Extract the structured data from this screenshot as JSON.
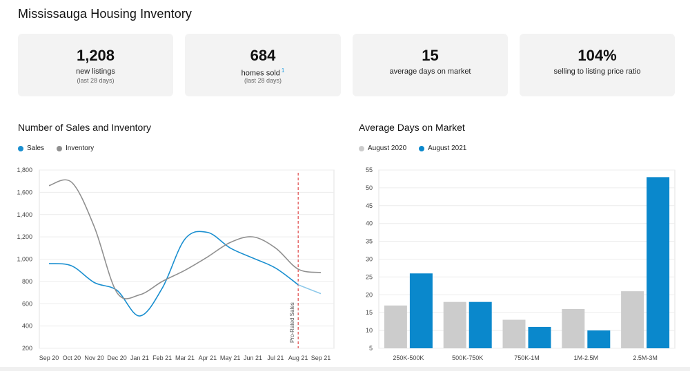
{
  "header": {
    "title": "Mississauga Housing Inventory"
  },
  "stats": [
    {
      "value": "1,208",
      "label": "new listings",
      "sub": "(last 28 days)",
      "footnote": ""
    },
    {
      "value": "684",
      "label": "homes sold",
      "sub": "(last 28 days)",
      "footnote": "1"
    },
    {
      "value": "15",
      "label": "average days on market",
      "sub": "",
      "footnote": ""
    },
    {
      "value": "104%",
      "label": "selling to listing price ratio",
      "sub": "",
      "footnote": ""
    }
  ],
  "colors": {
    "sales": "#1a8fd0",
    "inventory": "#909090",
    "aug2020": "#cccccc",
    "aug2021": "#0a88cc",
    "marker": "#e04848"
  },
  "chart_data": [
    {
      "type": "line",
      "title": "Number of Sales and Inventory",
      "categories": [
        "Sep 20",
        "Oct 20",
        "Nov 20",
        "Dec 20",
        "Jan 21",
        "Feb 21",
        "Mar 21",
        "Apr 21",
        "May 21",
        "Jun 21",
        "Jul 21",
        "Aug 21",
        "Sep 21"
      ],
      "series": [
        {
          "name": "Sales",
          "values": [
            960,
            940,
            790,
            720,
            490,
            740,
            1180,
            1240,
            1100,
            1010,
            920,
            770,
            690
          ]
        },
        {
          "name": "Inventory",
          "values": [
            1660,
            1690,
            1290,
            700,
            680,
            800,
            900,
            1020,
            1150,
            1200,
            1100,
            910,
            880
          ]
        }
      ],
      "projected_from": "Aug 21",
      "annotation": "Pro-Rated Sales",
      "yticks": [
        "200",
        "400",
        "600",
        "800",
        "1,000",
        "1,200",
        "1,400",
        "1,600",
        "1,800"
      ],
      "ylim": [
        200,
        1800
      ],
      "legend": [
        "Sales",
        "Inventory"
      ]
    },
    {
      "type": "bar",
      "title": "Average Days on Market",
      "categories": [
        "250K-500K",
        "500K-750K",
        "750K-1M",
        "1M-2.5M",
        "2.5M-3M"
      ],
      "series": [
        {
          "name": "August 2020",
          "values": [
            17,
            18,
            13,
            16,
            21
          ]
        },
        {
          "name": "August 2021",
          "values": [
            26,
            18,
            11,
            10,
            53
          ]
        }
      ],
      "yticks": [
        "5",
        "10",
        "15",
        "20",
        "25",
        "30",
        "35",
        "40",
        "45",
        "50",
        "55"
      ],
      "ylim": [
        5,
        55
      ],
      "legend": [
        "August 2020",
        "August 2021"
      ]
    }
  ]
}
